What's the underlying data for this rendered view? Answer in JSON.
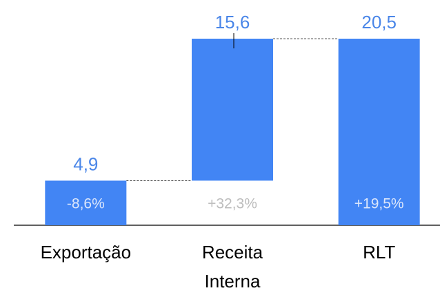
{
  "chart_data": {
    "type": "waterfall",
    "categories": [
      "Exportação",
      "Receita Interna",
      "RLT"
    ],
    "values": [
      4.9,
      15.6,
      20.5
    ],
    "value_labels": [
      "4,9",
      "15,6",
      "20,5"
    ],
    "measure": [
      "relative",
      "relative",
      "total"
    ],
    "annotations": [
      "-8,6%",
      "+32,3%",
      "+19,5%"
    ],
    "annotation_colors": [
      "#dbe6fb",
      "#bdbdbd",
      "#dbe6fb"
    ],
    "color": "#4285f4",
    "label_color": "#4a86e8"
  }
}
